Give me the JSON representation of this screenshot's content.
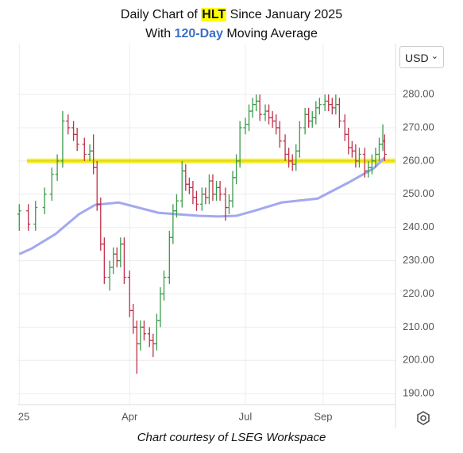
{
  "chart_data": {
    "type": "ohlc",
    "title": {
      "prefix": "Daily Chart of",
      "ticker": "HLT",
      "suffix": "Since January 2025"
    },
    "subtitle": {
      "prefix": "With",
      "highlight": "120-Day",
      "suffix": "Moving Average"
    },
    "footer": "Chart courtesy of LSEG Workspace",
    "currency": "USD",
    "up_color": "#3a9a4a",
    "down_color": "#c0304a",
    "x": [
      0,
      5,
      9,
      14,
      18,
      21,
      24,
      27,
      30,
      32,
      36,
      39,
      41,
      43,
      45,
      47,
      50,
      52,
      54,
      56,
      58,
      61,
      63,
      65,
      67,
      69,
      72,
      74,
      76,
      78,
      80,
      83,
      85,
      87,
      90,
      92,
      94,
      96,
      98,
      101,
      103,
      105,
      107,
      109,
      111,
      114,
      116,
      118,
      120,
      122,
      125,
      127,
      129,
      131,
      133,
      136,
      138,
      140,
      142,
      144,
      147,
      149,
      151,
      153,
      155,
      158,
      160,
      162,
      164,
      166,
      169,
      171,
      173,
      175,
      177,
      180,
      182,
      184,
      186,
      188,
      191,
      193,
      195,
      197,
      199,
      201,
      202
    ],
    "open": [
      244,
      245,
      241,
      246,
      250,
      256,
      260,
      272,
      270,
      268,
      265,
      262,
      263,
      258,
      247,
      235,
      225,
      228,
      232,
      230,
      235,
      225,
      215,
      210,
      205,
      210,
      208,
      206,
      205,
      212,
      220,
      225,
      237,
      245,
      248,
      257,
      253,
      252,
      249,
      247,
      250,
      249,
      254,
      250,
      252,
      250,
      246,
      248,
      255,
      260,
      270,
      271,
      275,
      277,
      278,
      274,
      275,
      273,
      272,
      270,
      266,
      262,
      260,
      259,
      263,
      270,
      274,
      272,
      273,
      276,
      277,
      278,
      277,
      276,
      277,
      272,
      268,
      264,
      263,
      260,
      262,
      257,
      258,
      260,
      262,
      265,
      266
    ],
    "high": [
      247,
      247,
      248,
      252,
      258,
      262,
      275,
      274,
      272,
      270,
      267,
      265,
      268,
      260,
      249,
      237,
      230,
      234,
      234,
      237,
      237,
      227,
      217,
      212,
      212,
      212,
      210,
      208,
      214,
      222,
      227,
      239,
      247,
      250,
      260,
      259,
      255,
      254,
      251,
      252,
      252,
      256,
      256,
      254,
      254,
      252,
      250,
      257,
      262,
      272,
      273,
      277,
      279,
      280,
      280,
      277,
      277,
      275,
      274,
      272,
      268,
      264,
      262,
      265,
      272,
      276,
      276,
      275,
      278,
      279,
      280,
      280,
      279,
      280,
      279,
      274,
      270,
      266,
      265,
      264,
      264,
      260,
      262,
      264,
      267,
      271,
      268
    ],
    "low": [
      239,
      239,
      239,
      244,
      248,
      254,
      258,
      268,
      266,
      263,
      260,
      260,
      256,
      245,
      233,
      223,
      221,
      226,
      228,
      228,
      223,
      213,
      208,
      196,
      203,
      206,
      204,
      201,
      203,
      210,
      218,
      223,
      235,
      243,
      246,
      251,
      250,
      247,
      245,
      245,
      247,
      247,
      248,
      248,
      248,
      242,
      244,
      246,
      253,
      258,
      268,
      269,
      273,
      275,
      272,
      272,
      271,
      270,
      268,
      264,
      260,
      258,
      257,
      257,
      261,
      268,
      270,
      270,
      271,
      274,
      275,
      275,
      274,
      274,
      270,
      266,
      262,
      261,
      258,
      258,
      255,
      255,
      256,
      258,
      260,
      263,
      260
    ],
    "close": [
      245,
      241,
      246,
      250,
      256,
      260,
      272,
      270,
      268,
      265,
      262,
      263,
      258,
      247,
      235,
      225,
      228,
      232,
      230,
      235,
      225,
      215,
      210,
      205,
      210,
      208,
      206,
      205,
      212,
      220,
      225,
      237,
      245,
      248,
      257,
      253,
      252,
      249,
      247,
      250,
      249,
      254,
      250,
      252,
      250,
      246,
      248,
      255,
      260,
      270,
      271,
      275,
      277,
      278,
      274,
      275,
      273,
      272,
      270,
      266,
      262,
      260,
      259,
      263,
      270,
      274,
      272,
      273,
      276,
      277,
      278,
      277,
      276,
      277,
      272,
      268,
      264,
      263,
      260,
      262,
      257,
      258,
      260,
      262,
      265,
      266,
      262
    ],
    "moving_average": {
      "color": "#a3a8f0",
      "x": [
        0,
        7,
        20,
        33,
        42,
        55,
        77,
        99,
        110,
        120,
        130,
        145,
        165,
        182,
        196,
        202
      ],
      "values": [
        232,
        233.7,
        238,
        244,
        246.8,
        247.5,
        244.4,
        243.5,
        243.3,
        243.5,
        245,
        247.5,
        248.7,
        253.5,
        257.8,
        261
      ]
    },
    "hline": {
      "value": 260,
      "color": "#f2ea00"
    },
    "xlim": [
      -1,
      208
    ],
    "xticks": [
      {
        "value": 0,
        "label": "25"
      },
      {
        "value": 61,
        "label": "Apr"
      },
      {
        "value": 125,
        "label": "Jul"
      },
      {
        "value": 168,
        "label": "Sep"
      }
    ],
    "ylim": [
      186.7,
      295.3
    ],
    "yticks": [
      {
        "value": 190,
        "label": "190.00"
      },
      {
        "value": 200,
        "label": "200.00"
      },
      {
        "value": 210,
        "label": "210.00"
      },
      {
        "value": 220,
        "label": "220.00"
      },
      {
        "value": 230,
        "label": "230.00"
      },
      {
        "value": 240,
        "label": "240.00"
      },
      {
        "value": 250,
        "label": "250.00"
      },
      {
        "value": 260,
        "label": "260.00"
      },
      {
        "value": 270,
        "label": "270.00"
      },
      {
        "value": 280,
        "label": "280.00"
      }
    ],
    "grid": true
  }
}
